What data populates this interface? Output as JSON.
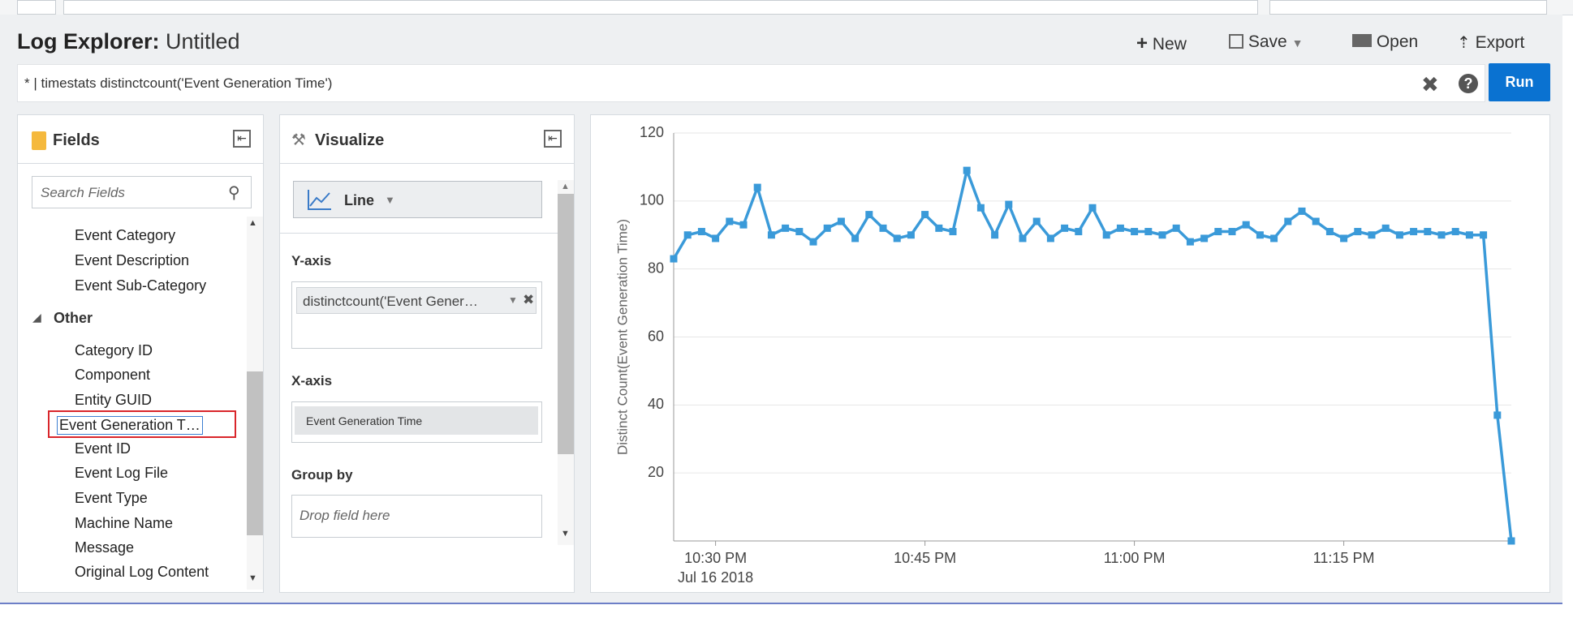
{
  "header": {
    "title": "Log Explorer:",
    "subtitle": "Untitled",
    "actions": [
      "New",
      "Save",
      "Open",
      "Export"
    ]
  },
  "query": {
    "text": "* | timestats distinctcount('Event Generation Time')",
    "run": "Run"
  },
  "fields_panel": {
    "title": "Fields",
    "search_placeholder": "Search Fields",
    "items": [
      "Event Category",
      "Event Description",
      "Event Sub-Category"
    ],
    "group": "Other",
    "group_items": [
      "Category ID",
      "Component",
      "Entity GUID",
      "Event Generation T…",
      "Event ID",
      "Event Log File",
      "Event Type",
      "Machine Name",
      "Message",
      "Original Log Content"
    ]
  },
  "visualize_panel": {
    "title": "Visualize",
    "chart_type": "Line",
    "y_axis_label": "Y-axis",
    "y_field": "distinctcount('Event Gener…",
    "x_axis_label": "X-axis",
    "x_field": "Event Generation Time",
    "group_by_label": "Group by",
    "group_by_placeholder": "Drop field here"
  },
  "chart_data": {
    "type": "line",
    "y_label": "Distinct Count(Event Generation Time)",
    "x_date_label": "Jul 16 2018",
    "x": [
      "2018-07-16T22:27",
      "2018-07-16T22:28",
      "2018-07-16T22:29",
      "2018-07-16T22:30",
      "2018-07-16T22:31",
      "2018-07-16T22:32",
      "2018-07-16T22:33",
      "2018-07-16T22:34",
      "2018-07-16T22:35",
      "2018-07-16T22:36",
      "2018-07-16T22:37",
      "2018-07-16T22:38",
      "2018-07-16T22:39",
      "2018-07-16T22:40",
      "2018-07-16T22:41",
      "2018-07-16T22:42",
      "2018-07-16T22:43",
      "2018-07-16T22:44",
      "2018-07-16T22:45",
      "2018-07-16T22:46",
      "2018-07-16T22:47",
      "2018-07-16T22:48",
      "2018-07-16T22:49",
      "2018-07-16T22:50",
      "2018-07-16T22:51",
      "2018-07-16T22:52",
      "2018-07-16T22:53",
      "2018-07-16T22:54",
      "2018-07-16T22:55",
      "2018-07-16T22:56",
      "2018-07-16T22:57",
      "2018-07-16T22:58",
      "2018-07-16T22:59",
      "2018-07-16T23:00",
      "2018-07-16T23:01",
      "2018-07-16T23:02",
      "2018-07-16T23:03",
      "2018-07-16T23:04",
      "2018-07-16T23:05",
      "2018-07-16T23:06",
      "2018-07-16T23:07",
      "2018-07-16T23:08",
      "2018-07-16T23:09",
      "2018-07-16T23:10",
      "2018-07-16T23:11",
      "2018-07-16T23:12",
      "2018-07-16T23:13",
      "2018-07-16T23:14",
      "2018-07-16T23:15",
      "2018-07-16T23:16",
      "2018-07-16T23:17",
      "2018-07-16T23:18",
      "2018-07-16T23:19",
      "2018-07-16T23:20",
      "2018-07-16T23:21",
      "2018-07-16T23:22",
      "2018-07-16T23:23",
      "2018-07-16T23:24",
      "2018-07-16T23:25",
      "2018-07-16T23:26",
      "2018-07-16T23:27"
    ],
    "values": [
      83,
      90,
      91,
      89,
      94,
      93,
      104,
      90,
      92,
      91,
      88,
      92,
      94,
      89,
      96,
      92,
      89,
      90,
      96,
      92,
      91,
      109,
      98,
      90,
      99,
      89,
      94,
      89,
      92,
      91,
      98,
      90,
      92,
      91,
      91,
      90,
      92,
      88,
      89,
      91,
      91,
      93,
      90,
      89,
      94,
      97,
      94,
      91,
      89,
      91,
      90,
      92,
      90,
      91,
      91,
      90,
      91,
      90,
      90,
      37,
      0
    ],
    "color": "#3a9ad9",
    "markers": true,
    "xlim": [
      "2018-07-16T22:27",
      "2018-07-16T23:27"
    ],
    "xticks": [
      {
        "value": "2018-07-16T22:30",
        "label": "10:30 PM"
      },
      {
        "value": "2018-07-16T22:45",
        "label": "10:45 PM"
      },
      {
        "value": "2018-07-16T23:00",
        "label": "11:00 PM"
      },
      {
        "value": "2018-07-16T23:15",
        "label": "11:15 PM"
      }
    ],
    "ylim": [
      0,
      120
    ],
    "yticks": [
      20,
      40,
      60,
      80,
      100,
      120
    ],
    "grid": true
  }
}
